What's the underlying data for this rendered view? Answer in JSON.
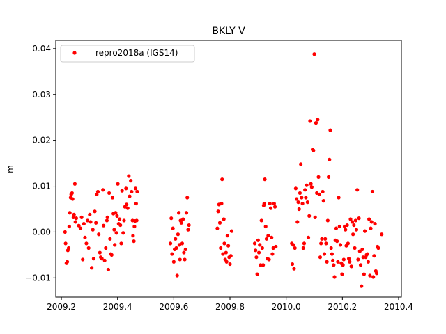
{
  "chart_data": {
    "type": "scatter",
    "title": "BKLY V",
    "xlabel": "",
    "ylabel": "m",
    "xlim": [
      2009.18,
      2010.41
    ],
    "ylim": [
      -0.0142,
      0.0418
    ],
    "xticks": [
      2009.2,
      2009.4,
      2009.6,
      2009.8,
      2010.0,
      2010.2,
      2010.4
    ],
    "xtick_labels": [
      "2009.2",
      "2009.4",
      "2009.6",
      "2009.8",
      "2010.0",
      "2010.2",
      "2010.4"
    ],
    "yticks": [
      -0.01,
      0.0,
      0.01,
      0.02,
      0.03,
      0.04
    ],
    "ytick_labels": [
      "−0.01",
      "0.00",
      "0.01",
      "0.02",
      "0.03",
      "0.04"
    ],
    "grid": false,
    "legend_position": "top-left",
    "series": [
      {
        "name": "repro2018a (IGS14)",
        "color": "#ff0000",
        "marker": "circle",
        "points": [
          [
            2009.213,
            0.0
          ],
          [
            2009.215,
            -0.0025
          ],
          [
            2009.218,
            -0.0068
          ],
          [
            2009.221,
            -0.0065
          ],
          [
            2009.223,
            -0.004
          ],
          [
            2009.226,
            -0.0035
          ],
          [
            2009.228,
            0.0012
          ],
          [
            2009.23,
            0.0042
          ],
          [
            2009.233,
            0.0075
          ],
          [
            2009.235,
            0.0082
          ],
          [
            2009.238,
            0.0085
          ],
          [
            2009.24,
            0.0072
          ],
          [
            2009.243,
            0.0032
          ],
          [
            2009.245,
            0.0038
          ],
          [
            2009.248,
            0.0105
          ],
          [
            2009.25,
            0.0022
          ],
          [
            2009.253,
            0.003
          ],
          [
            2009.262,
            0.0014
          ],
          [
            2009.268,
            0.0008
          ],
          [
            2009.272,
            0.0032
          ],
          [
            2009.276,
            -0.006
          ],
          [
            2009.28,
            0.0018
          ],
          [
            2009.284,
            -0.0012
          ],
          [
            2009.289,
            -0.0025
          ],
          [
            2009.293,
            0.0025
          ],
          [
            2009.297,
            -0.0035
          ],
          [
            2009.301,
            0.0038
          ],
          [
            2009.304,
            0.0022
          ],
          [
            2009.308,
            -0.0078
          ],
          [
            2009.312,
            0.0005
          ],
          [
            2009.315,
            -0.0058
          ],
          [
            2009.319,
            0.0045
          ],
          [
            2009.323,
            0.002
          ],
          [
            2009.326,
            0.0082
          ],
          [
            2009.33,
            0.0088
          ],
          [
            2009.333,
            -0.0005
          ],
          [
            2009.337,
            -0.0045
          ],
          [
            2009.34,
            -0.0055
          ],
          [
            2009.344,
            -0.0058
          ],
          [
            2009.348,
            0.0092
          ],
          [
            2009.35,
            0.0014
          ],
          [
            2009.354,
            -0.0062
          ],
          [
            2009.358,
            -0.0035
          ],
          [
            2009.362,
            0.0025
          ],
          [
            2009.364,
            0.0032
          ],
          [
            2009.367,
            -0.0082
          ],
          [
            2009.37,
            0.0085
          ],
          [
            2009.373,
            -0.0015
          ],
          [
            2009.376,
            -0.0048
          ],
          [
            2009.379,
            -0.005
          ],
          [
            2009.382,
            0.0075
          ],
          [
            2009.385,
            0.004
          ],
          [
            2009.388,
            0.0005
          ],
          [
            2009.39,
            -0.0028
          ],
          [
            2009.393,
            0.0042
          ],
          [
            2009.396,
            -0.0002
          ],
          [
            2009.398,
            0.0035
          ],
          [
            2009.401,
            0.0105
          ],
          [
            2009.404,
            0.0018
          ],
          [
            2009.407,
            0.0028
          ],
          [
            2009.41,
            0.0015
          ],
          [
            2009.413,
            -0.0025
          ],
          [
            2009.416,
            0.009
          ],
          [
            2009.42,
            -0.0002
          ],
          [
            2009.423,
            0.0025
          ],
          [
            2009.426,
            0.0055
          ],
          [
            2009.43,
            0.0095
          ],
          [
            2009.432,
            0.006
          ],
          [
            2009.436,
            0.0052
          ],
          [
            2009.44,
            0.0122
          ],
          [
            2009.443,
            0.0078
          ],
          [
            2009.447,
            0.0112
          ],
          [
            2009.45,
            0.0088
          ],
          [
            2009.453,
            0.0025
          ],
          [
            2009.455,
            -0.0008
          ],
          [
            2009.458,
            -0.002
          ],
          [
            2009.46,
            0.0012
          ],
          [
            2009.462,
            0.0024
          ],
          [
            2009.464,
            0.0095
          ],
          [
            2009.466,
            0.0062
          ],
          [
            2009.468,
            0.0025
          ],
          [
            2009.47,
            0.0088
          ],
          [
            2009.588,
            -0.0025
          ],
          [
            2009.591,
            0.003
          ],
          [
            2009.594,
            -0.0048
          ],
          [
            2009.597,
            0.0008
          ],
          [
            2009.6,
            -0.0065
          ],
          [
            2009.603,
            -0.0038
          ],
          [
            2009.606,
            -0.0015
          ],
          [
            2009.609,
            -0.0035
          ],
          [
            2009.612,
            -0.0095
          ],
          [
            2009.615,
            -0.0005
          ],
          [
            2009.618,
            0.0042
          ],
          [
            2009.62,
            -0.0028
          ],
          [
            2009.622,
            -0.006
          ],
          [
            2009.624,
            0.0025
          ],
          [
            2009.627,
            0.002
          ],
          [
            2009.63,
            -0.0025
          ],
          [
            2009.633,
            0.0028
          ],
          [
            2009.636,
            -0.0045
          ],
          [
            2009.639,
            -0.006
          ],
          [
            2009.642,
            -0.0038
          ],
          [
            2009.645,
            0.0042
          ],
          [
            2009.648,
            0.0075
          ],
          [
            2009.651,
            0.0005
          ],
          [
            2009.654,
            0.0015
          ],
          [
            2009.755,
            0.0008
          ],
          [
            2009.758,
            0.0045
          ],
          [
            2009.761,
            0.006
          ],
          [
            2009.764,
            0.002
          ],
          [
            2009.767,
            -0.0035
          ],
          [
            2009.77,
            0.0062
          ],
          [
            2009.772,
            0.0115
          ],
          [
            2009.775,
            -0.0048
          ],
          [
            2009.778,
            0.0028
          ],
          [
            2009.78,
            -0.0025
          ],
          [
            2009.783,
            -0.006
          ],
          [
            2009.786,
            -0.0045
          ],
          [
            2009.788,
            -0.0065
          ],
          [
            2009.791,
            -0.0008
          ],
          [
            2009.794,
            -0.003
          ],
          [
            2009.797,
            -0.0055
          ],
          [
            2009.8,
            -0.007
          ],
          [
            2009.803,
            -0.0052
          ],
          [
            2009.806,
            0.0002
          ],
          [
            2009.888,
            -0.0025
          ],
          [
            2009.891,
            -0.004
          ],
          [
            2009.894,
            -0.0055
          ],
          [
            2009.897,
            -0.0092
          ],
          [
            2009.9,
            -0.0018
          ],
          [
            2009.903,
            -0.0045
          ],
          [
            2009.906,
            -0.0028
          ],
          [
            2009.909,
            -0.0072
          ],
          [
            2009.912,
            0.0025
          ],
          [
            2009.915,
            -0.0035
          ],
          [
            2009.918,
            -0.0072
          ],
          [
            2009.92,
            0.0058
          ],
          [
            2009.922,
            0.0062
          ],
          [
            2009.924,
            0.0115
          ],
          [
            2009.927,
            0.0012
          ],
          [
            2009.93,
            -0.0015
          ],
          [
            2009.933,
            -0.0058
          ],
          [
            2009.936,
            -0.0008
          ],
          [
            2009.939,
            -0.006
          ],
          [
            2009.942,
            0.0062
          ],
          [
            2009.945,
            0.0052
          ],
          [
            2009.948,
            -0.0012
          ],
          [
            2009.951,
            -0.0048
          ],
          [
            2009.954,
            -0.0035
          ],
          [
            2009.957,
            0.0062
          ],
          [
            2009.96,
            0.0055
          ],
          [
            2009.963,
            -0.0032
          ],
          [
            2010.02,
            -0.0025
          ],
          [
            2010.022,
            -0.007
          ],
          [
            2010.025,
            -0.0028
          ],
          [
            2010.028,
            -0.008
          ],
          [
            2010.031,
            -0.0035
          ],
          [
            2010.034,
            0.0095
          ],
          [
            2010.037,
            0.0072
          ],
          [
            2010.04,
            0.0022
          ],
          [
            2010.043,
            0.0065
          ],
          [
            2010.046,
            0.005
          ],
          [
            2010.049,
            0.0085
          ],
          [
            2010.052,
            0.0148
          ],
          [
            2010.055,
            0.0075
          ],
          [
            2010.058,
            0.0062
          ],
          [
            2010.061,
            -0.0035
          ],
          [
            2010.064,
            -0.0025
          ],
          [
            2010.067,
            0.0092
          ],
          [
            2010.07,
            0.0075
          ],
          [
            2010.073,
            0.0102
          ],
          [
            2010.076,
            0.0065
          ],
          [
            2010.079,
            -0.0012
          ],
          [
            2010.082,
            0.0035
          ],
          [
            2010.085,
            0.0242
          ],
          [
            2010.088,
            0.0105
          ],
          [
            2010.091,
            0.0098
          ],
          [
            2010.094,
            0.018
          ],
          [
            2010.097,
            0.0178
          ],
          [
            2010.1,
            0.0388
          ],
          [
            2010.103,
            0.0032
          ],
          [
            2010.106,
            0.0238
          ],
          [
            2010.109,
            0.0085
          ],
          [
            2010.112,
            0.0245
          ],
          [
            2010.115,
            0.012
          ],
          [
            2010.118,
            0.0082
          ],
          [
            2010.121,
            -0.0055
          ],
          [
            2010.124,
            -0.0025
          ],
          [
            2010.127,
            -0.0015
          ],
          [
            2010.13,
            0.0088
          ],
          [
            2010.133,
            0.0068
          ],
          [
            2010.136,
            -0.0048
          ],
          [
            2010.139,
            -0.0015
          ],
          [
            2010.142,
            -0.0025
          ],
          [
            2010.145,
            -0.0065
          ],
          [
            2010.148,
            0.0025
          ],
          [
            2010.151,
            0.012
          ],
          [
            2010.154,
            0.0158
          ],
          [
            2010.157,
            0.0222
          ],
          [
            2010.16,
            -0.0035
          ],
          [
            2010.163,
            -0.0048
          ],
          [
            2010.166,
            -0.0062
          ],
          [
            2010.169,
            -0.0072
          ],
          [
            2010.172,
            -0.0098
          ],
          [
            2010.175,
            -0.0018
          ],
          [
            2010.178,
            0.0008
          ],
          [
            2010.181,
            -0.002
          ],
          [
            2010.184,
            -0.0065
          ],
          [
            2010.187,
            0.0075
          ],
          [
            2010.19,
            0.0012
          ],
          [
            2010.193,
            -0.0028
          ],
          [
            2010.196,
            -0.0068
          ],
          [
            2010.199,
            -0.0092
          ],
          [
            2010.202,
            -0.0072
          ],
          [
            2010.205,
            -0.006
          ],
          [
            2010.208,
            0.0012
          ],
          [
            2010.211,
            0.0005
          ],
          [
            2010.214,
            -0.003
          ],
          [
            2010.217,
            0.0015
          ],
          [
            2010.22,
            -0.0025
          ],
          [
            2010.223,
            -0.0058
          ],
          [
            2010.226,
            -0.0065
          ],
          [
            2010.229,
            0.0028
          ],
          [
            2010.232,
            -0.0075
          ],
          [
            2010.235,
            0.0022
          ],
          [
            2010.238,
            -0.0005
          ],
          [
            2010.241,
            0.0015
          ],
          [
            2010.244,
            -0.0035
          ],
          [
            2010.247,
            0.0025
          ],
          [
            2010.25,
            0.0005
          ],
          [
            2010.253,
            0.0092
          ],
          [
            2010.256,
            -0.006
          ],
          [
            2010.259,
            0.003
          ],
          [
            2010.262,
            -0.0042
          ],
          [
            2010.265,
            -0.0072
          ],
          [
            2010.268,
            -0.0118
          ],
          [
            2010.271,
            -0.0038
          ],
          [
            2010.274,
            -0.0055
          ],
          [
            2010.277,
            -0.0092
          ],
          [
            2010.28,
            0.0002
          ],
          [
            2010.283,
            -0.0055
          ],
          [
            2010.286,
            -0.005
          ],
          [
            2010.289,
            -0.0048
          ],
          [
            2010.292,
            -0.0065
          ],
          [
            2010.295,
            0.0028
          ],
          [
            2010.298,
            -0.0095
          ],
          [
            2010.301,
            0.0008
          ],
          [
            2010.304,
            0.0022
          ],
          [
            2010.307,
            0.0088
          ],
          [
            2010.31,
            -0.0098
          ],
          [
            2010.313,
            -0.0052
          ],
          [
            2010.316,
            0.0018
          ],
          [
            2010.319,
            -0.0085
          ],
          [
            2010.322,
            -0.009
          ],
          [
            2010.325,
            -0.0032
          ],
          [
            2010.328,
            -0.0035
          ],
          [
            2010.34,
            -0.0005
          ]
        ]
      }
    ]
  }
}
